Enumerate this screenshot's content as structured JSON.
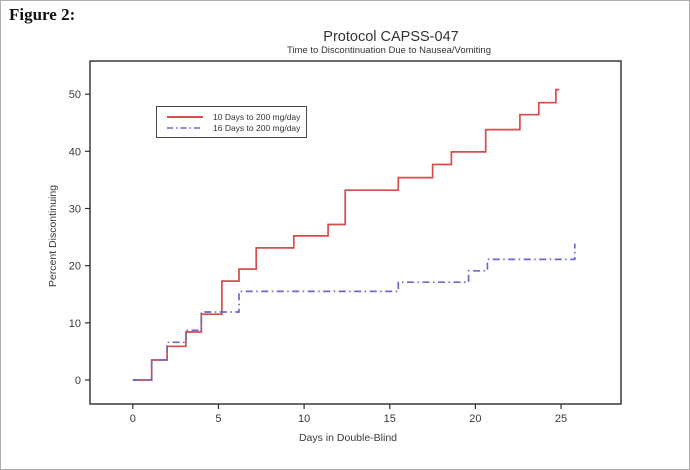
{
  "figure_label": "Figure 2:",
  "chart_data": {
    "type": "line",
    "subtype": "kaplan-meier-step",
    "title": "Protocol CAPSS-047",
    "subtitle": "Time to Discontinuation Due to Nausea/Vomiting",
    "xlabel": "Days in Double-Blind",
    "ylabel": "Percent Discontinuing",
    "xlim": [
      -2.5,
      28.5
    ],
    "ylim": [
      -4.2,
      55.8
    ],
    "x_ticks": [
      0,
      5,
      10,
      15,
      20,
      25
    ],
    "y_ticks": [
      0,
      10,
      20,
      30,
      40,
      50
    ],
    "grid": false,
    "legend_position": "upper-left-inside",
    "frame_color": "#2e2e2e",
    "series": [
      {
        "name": "10 Days to 200 mg/day",
        "color": "#d94a4a",
        "style": "solid",
        "step_points": [
          [
            0,
            0
          ],
          [
            1.1,
            3.5
          ],
          [
            2,
            5.9
          ],
          [
            3.1,
            8.4
          ],
          [
            4,
            11.5
          ],
          [
            5.2,
            17.3
          ],
          [
            6.2,
            19.4
          ],
          [
            7.2,
            23.1
          ],
          [
            9.4,
            25.2
          ],
          [
            11.4,
            27.2
          ],
          [
            12.4,
            33.2
          ],
          [
            15.5,
            35.4
          ],
          [
            17.5,
            37.7
          ],
          [
            18.6,
            39.9
          ],
          [
            20.6,
            43.8
          ],
          [
            22.6,
            46.4
          ],
          [
            23.7,
            48.5
          ],
          [
            24.7,
            50.8
          ]
        ],
        "end_x": 24.9
      },
      {
        "name": "16 Days to 200 mg/day",
        "color": "#6a6ac8",
        "style": "dash-dot",
        "step_points": [
          [
            0,
            0
          ],
          [
            1.1,
            3.5
          ],
          [
            2,
            6.6
          ],
          [
            3.1,
            8.7
          ],
          [
            4,
            11.9
          ],
          [
            6.2,
            15.5
          ],
          [
            15.5,
            17.1
          ],
          [
            19.6,
            19.1
          ],
          [
            20.7,
            21.1
          ],
          [
            25.8,
            23.7
          ]
        ],
        "end_x": 25.85
      }
    ]
  }
}
